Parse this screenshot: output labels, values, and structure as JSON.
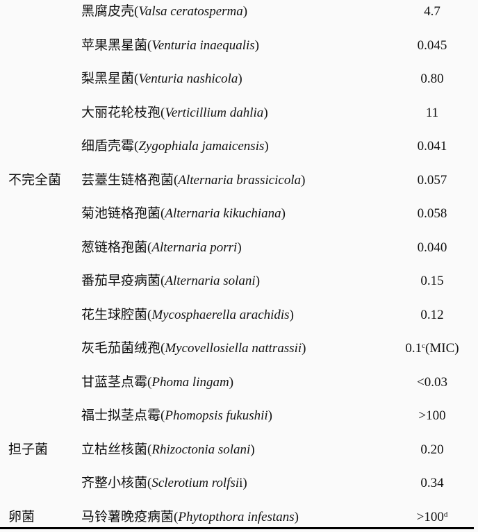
{
  "table": {
    "rows": [
      {
        "category": "",
        "cn": "黑腐皮壳",
        "latin": "Valsa ceratosperma",
        "latin_suffix": "",
        "value": "4.7",
        "value_sup": "",
        "value_tail": ""
      },
      {
        "category": "",
        "cn": "苹果黑星菌",
        "latin": "Venturia inaequalis",
        "latin_suffix": "",
        "value": "0.045",
        "value_sup": "",
        "value_tail": ""
      },
      {
        "category": "",
        "cn": "梨黑星菌",
        "latin": "Venturia nashicola",
        "latin_suffix": "",
        "value": "0.80",
        "value_sup": "",
        "value_tail": ""
      },
      {
        "category": "",
        "cn": "大丽花轮枝孢",
        "latin": "Verticillium dahlia",
        "latin_suffix": "",
        "value": "11",
        "value_sup": "",
        "value_tail": ""
      },
      {
        "category": "",
        "cn": "细盾壳霉",
        "latin": "Zygophiala jamaicensis",
        "latin_suffix": "",
        "value": "0.041",
        "value_sup": "",
        "value_tail": ""
      },
      {
        "category": "不完全菌",
        "cn": "芸薹生链格孢菌",
        "latin": "Alternaria brassicicola",
        "latin_suffix": "",
        "value": "0.057",
        "value_sup": "",
        "value_tail": ""
      },
      {
        "category": "",
        "cn": "菊池链格孢菌",
        "latin": "Alternaria kikuchiana",
        "latin_suffix": "",
        "value": "0.058",
        "value_sup": "",
        "value_tail": ""
      },
      {
        "category": "",
        "cn": "葱链格孢菌",
        "latin": "Alternaria porri",
        "latin_suffix": "",
        "value": "0.040",
        "value_sup": "",
        "value_tail": ""
      },
      {
        "category": "",
        "cn": "番茄早疫病菌",
        "latin": "Alternaria solani",
        "latin_suffix": "",
        "value": "0.15",
        "value_sup": "",
        "value_tail": ""
      },
      {
        "category": "",
        "cn": "花生球腔菌",
        "latin": "Mycosphaerella arachidis",
        "latin_suffix": "",
        "value": "0.12",
        "value_sup": "",
        "value_tail": ""
      },
      {
        "category": "",
        "cn": "灰毛茄菌绒孢",
        "latin": "Mycovellosiella nattrassii",
        "latin_suffix": "",
        "value": "0.1",
        "value_sup": "c",
        "value_tail": "(MIC)"
      },
      {
        "category": "",
        "cn": "甘蓝茎点霉",
        "latin": "Phoma lingam",
        "latin_suffix": "",
        "value": "<0.03",
        "value_sup": "",
        "value_tail": ""
      },
      {
        "category": "",
        "cn": "福士拟茎点霉",
        "latin": "Phomopsis fukushii",
        "latin_suffix": "",
        "value": ">100",
        "value_sup": "",
        "value_tail": ""
      },
      {
        "category": "担子菌",
        "cn": "立枯丝核菌",
        "latin": "Rhizoctonia solani",
        "latin_suffix": "",
        "value": "0.20",
        "value_sup": "",
        "value_tail": ""
      },
      {
        "category": "",
        "cn": "齐整小核菌",
        "latin": "Sclerotium rolfsi",
        "latin_suffix": "i",
        "value": "0.34",
        "value_sup": "",
        "value_tail": ""
      },
      {
        "category": "卵菌",
        "cn": "马铃薯晚疫病菌",
        "latin": "Phytopthora infestans",
        "latin_suffix": "",
        "value": ">100",
        "value_sup": "d",
        "value_tail": ""
      }
    ]
  }
}
